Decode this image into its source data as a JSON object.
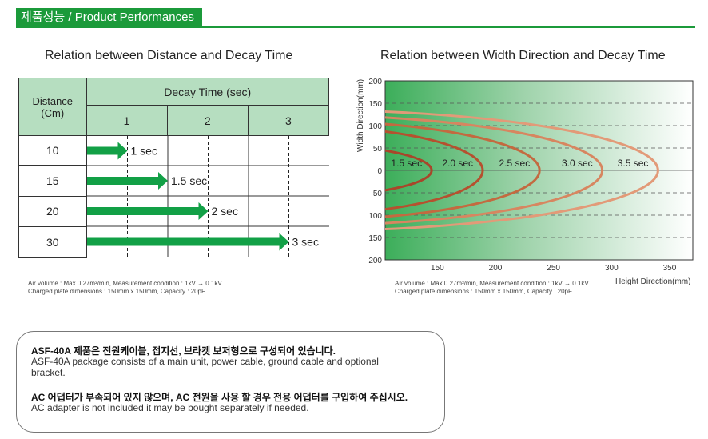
{
  "header": {
    "title": "제품성능 / Product Performances"
  },
  "left_panel": {
    "title": "Relation between Distance and Decay Time",
    "table": {
      "corner_label_line1": "Distance",
      "corner_label_line2": "(Cm)",
      "group_header": "Decay Time  (sec)",
      "columns": [
        "1",
        "2",
        "3"
      ],
      "rows": [
        {
          "distance": "10",
          "label": "1 sec"
        },
        {
          "distance": "15",
          "label": "1.5 sec"
        },
        {
          "distance": "20",
          "label": "2 sec"
        },
        {
          "distance": "30",
          "label": "3 sec"
        }
      ]
    },
    "note_line1": "Air volume : Max 0.27m³/min, Measurement condition : 1kV → 0.1kV",
    "note_line2": "Charged plate dimensions : 150mm x 150mm,  Capacity : 20pF"
  },
  "right_panel": {
    "title": "Relation between Width Direction and Decay Time",
    "note_line1": "Air volume : Max 0.27m³/min, Measurement condition : 1kV → 0.1kV",
    "note_line2": "Charged plate dimensions : 150mm x 150mm,  Capacity : 20pF"
  },
  "chart_data": [
    {
      "type": "bar",
      "title": "Relation between Distance and Decay Time",
      "xlabel": "Decay Time  (sec)",
      "ylabel": "Distance (Cm)",
      "categories": [
        "10",
        "15",
        "20",
        "30"
      ],
      "values": [
        1,
        1.5,
        2,
        3
      ],
      "labels": [
        "1 sec",
        "1.5 sec",
        "2 sec",
        "3 sec"
      ],
      "xlim": [
        0,
        3
      ],
      "x_ticks": [
        "1",
        "2",
        "3"
      ],
      "bar_color": "#12a046"
    },
    {
      "type": "line",
      "title": "Relation between Width Direction and Decay Time",
      "xlabel": "Height Direction(mm)",
      "ylabel": "Width Direction(mm)",
      "x_ticks": [
        "150",
        "200",
        "250",
        "300",
        "350"
      ],
      "y_ticks": [
        "200",
        "150",
        "100",
        "50",
        "0",
        "50",
        "100",
        "150",
        "200"
      ],
      "xlim": [
        105,
        370
      ],
      "ylim": [
        -200,
        200
      ],
      "grid": "dashed horizontal",
      "series": [
        {
          "name": "1.5 sec",
          "x_max": 145,
          "half_width": 60,
          "color": "#a8462a"
        },
        {
          "name": "2.0 sec",
          "x_max": 189,
          "half_width": 100,
          "color": "#b5512f"
        },
        {
          "name": "2.5 sec",
          "x_max": 238,
          "half_width": 112,
          "color": "#c36a40"
        },
        {
          "name": "3.0 sec",
          "x_max": 292,
          "half_width": 124,
          "color": "#d78660"
        },
        {
          "name": "3.5 sec",
          "x_max": 340,
          "half_width": 136,
          "color": "#e29a78"
        }
      ]
    }
  ],
  "info_box": {
    "line1_ko": "ASF-40A 제품은 전원케이블, 접지선, 브라켓 보저형으로 구성되어 있습니다.",
    "line2_en": "ASF-40A package consists of a main unit, power cable, ground cable and optional",
    "line3_en": "bracket.",
    "line4_ko": "AC 어댑터가 부속되어 있지 않으며, AC 전원을 사용 할 경우 전용 어댑터를 구입하여 주십시오.",
    "line5_en": "AC adapter is not included it may be bought separately if needed."
  }
}
